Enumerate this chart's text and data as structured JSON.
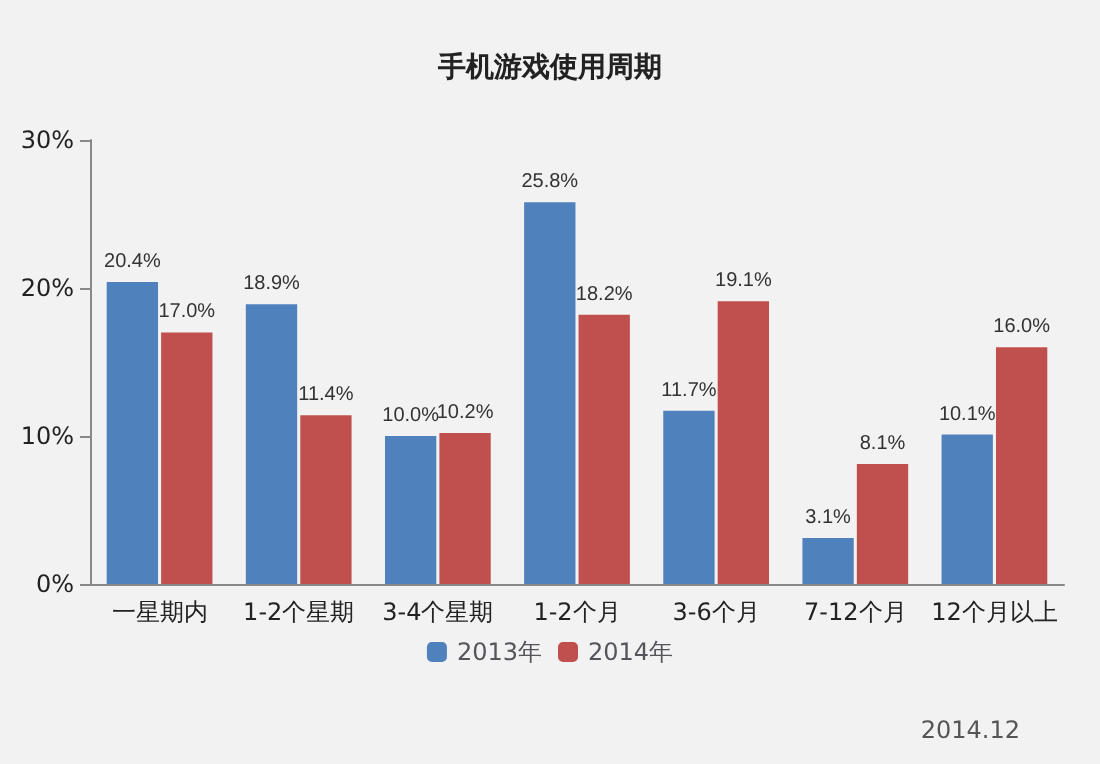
{
  "chart_data": {
    "type": "bar",
    "title": "手机游戏使用周期",
    "categories": [
      "一星期内",
      "1-2个星期",
      "3-4个星期",
      "1-2个月",
      "3-6个月",
      "7-12个月",
      "12个月以上"
    ],
    "series": [
      {
        "name": "2013年",
        "color": "#4f81bd",
        "values": [
          20.4,
          18.9,
          10.0,
          25.8,
          11.7,
          3.1,
          10.1
        ],
        "value_labels": [
          "20.4%",
          "18.9%",
          "10.0%",
          "25.8%",
          "11.7%",
          "3.1%",
          "10.1%"
        ]
      },
      {
        "name": "2014年",
        "color": "#c0504d",
        "values": [
          17.0,
          11.4,
          10.2,
          18.2,
          19.1,
          8.1,
          16.0
        ],
        "value_labels": [
          "17.0%",
          "11.4%",
          "10.2%",
          "18.2%",
          "19.1%",
          "8.1%",
          "16.0%"
        ]
      }
    ],
    "ylim": [
      0,
      30
    ],
    "yticks": [
      {
        "value": 0,
        "label": "0%"
      },
      {
        "value": 10,
        "label": "10%"
      },
      {
        "value": 20,
        "label": "20%"
      },
      {
        "value": 30,
        "label": "30%"
      }
    ],
    "grid": false,
    "legend": "bottom",
    "annotations": [
      "2014.12"
    ]
  }
}
